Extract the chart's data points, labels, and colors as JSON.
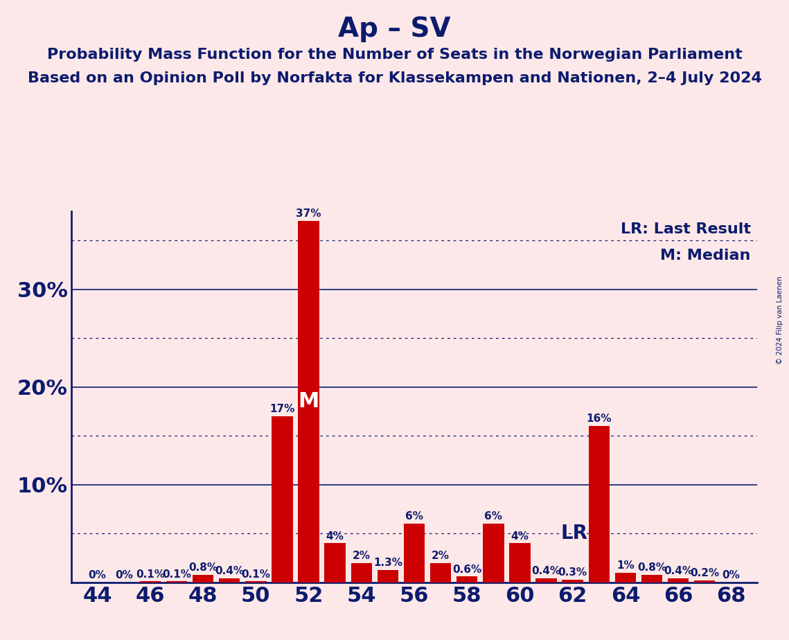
{
  "title": "Ap – SV",
  "subtitle1": "Probability Mass Function for the Number of Seats in the Norwegian Parliament",
  "subtitle2": "Based on an Opinion Poll by Norfakta for Klassekampen and Nationen, 2–4 July 2024",
  "copyright": "© 2024 Filip van Laenen",
  "legend_lr": "LR: Last Result",
  "legend_m": "M: Median",
  "seats": [
    44,
    45,
    46,
    47,
    48,
    49,
    50,
    51,
    52,
    53,
    54,
    55,
    56,
    57,
    58,
    59,
    60,
    61,
    62,
    63,
    64,
    65,
    66,
    67,
    68
  ],
  "values": [
    0.0,
    0.0,
    0.1,
    0.1,
    0.8,
    0.4,
    0.1,
    17.0,
    37.0,
    4.0,
    2.0,
    1.3,
    6.0,
    2.0,
    0.6,
    6.0,
    4.0,
    0.4,
    0.3,
    16.0,
    1.0,
    0.8,
    0.4,
    0.2,
    0.0
  ],
  "bar_color": "#cc0000",
  "bg_color": "#fce8e8",
  "text_color": "#0d1b6e",
  "median_seat": 52,
  "lr_seat": 61,
  "ymax": 38,
  "title_fontsize": 28,
  "subtitle_fontsize": 16,
  "axis_label_fontsize": 22,
  "bar_label_fontsize": 11,
  "legend_fontsize": 16
}
